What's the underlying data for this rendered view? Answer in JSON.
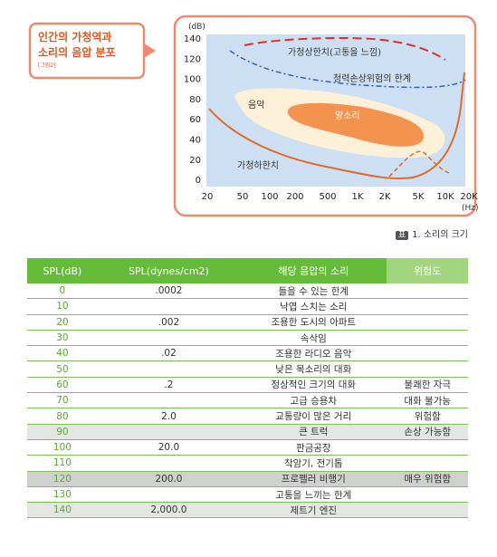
{
  "callout": {
    "title_line1": "인간의 가청역과",
    "title_line2": "소리의 음압 분포",
    "figure_label": "[그림2]"
  },
  "figure": {
    "y_unit": "(dB)",
    "x_unit": "(Hz)",
    "y_labels": [
      "140",
      "120",
      "100",
      "80",
      "60",
      "40",
      "20",
      "0"
    ],
    "x_labels": [
      "20",
      "50",
      "100",
      "200",
      "500",
      "1K",
      "2K",
      "5K",
      "10K",
      "20K"
    ],
    "annotations": {
      "upper": "가청상한치(고통을 느낌)",
      "damage": "청력손상위험의 한계",
      "music": "음악",
      "speech": "말소리",
      "lower": "가청하한치"
    }
  },
  "table": {
    "caption_mark": "표",
    "caption": "1. 소리의 크기",
    "headers": [
      "SPL(dB)",
      "SPL(dynes/cm2)",
      "해당 음압의 소리",
      "위험도"
    ],
    "rows": [
      {
        "db": "0",
        "dynes": ".0002",
        "sound": "들을 수 있는 한계"
      },
      {
        "db": "10",
        "sound": "낙엽 스치는 소리"
      },
      {
        "db": "20",
        "dynes": ".002",
        "sound": "조용한 도시의 아파트"
      },
      {
        "db": "30",
        "sound": "속삭임"
      },
      {
        "db": "40",
        "dynes": ".02",
        "sound": "조용한 라디오 음악"
      },
      {
        "db": "50",
        "sound": "낮은 목소리의 대화"
      },
      {
        "db": "60",
        "dynes": ".2",
        "sound": "정상적인 크기의 대화",
        "risk": "불쾌한 자극"
      },
      {
        "db": "70",
        "sound": "고급 승용차",
        "risk": "대화 불가능"
      },
      {
        "db": "80",
        "dynes": "2.0",
        "sound": "교통량이 많은 거리",
        "risk": "위험함"
      },
      {
        "db": "90",
        "sound": "큰 트럭",
        "risk": "손상 가능함"
      },
      {
        "db": "100",
        "dynes": "20.0",
        "sound": "판금공장"
      },
      {
        "db": "110",
        "sound": "착암기, 전기톱"
      },
      {
        "db": "120",
        "dynes": "200.0",
        "sound": "프로펠러 비행기",
        "risk": "매우 위험함"
      },
      {
        "db": "130",
        "sound": "고통을 느끼는 한계"
      },
      {
        "db": "140",
        "dynes": "2,000.0",
        "sound": "제트기 엔진"
      }
    ]
  }
}
